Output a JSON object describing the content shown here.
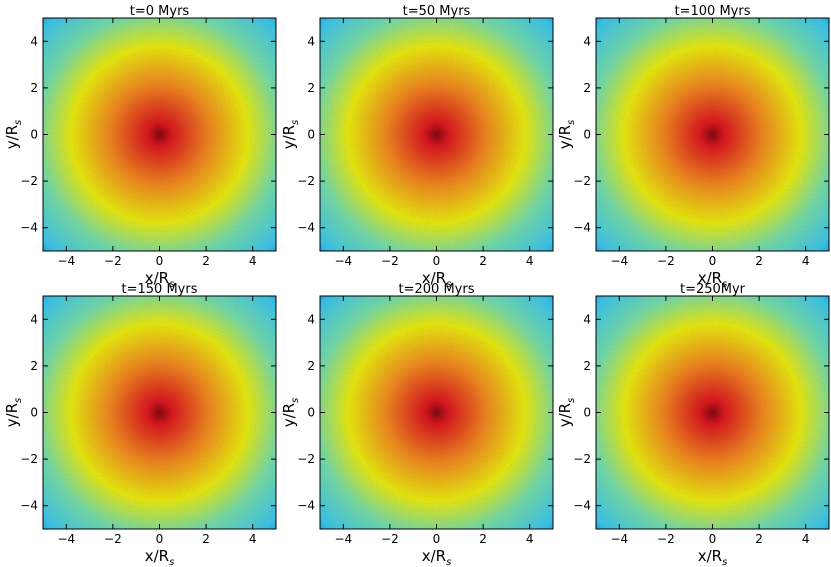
{
  "chart_data": [
    {
      "type": "heatmap",
      "title": "t=0 Myrs",
      "xlabel": "x/R",
      "xlabel_sub": "s",
      "ylabel": "y/R",
      "ylabel_sub": "s",
      "xlim": [
        -5,
        5
      ],
      "ylim": [
        -5,
        5
      ],
      "xticks": [
        -4,
        -2,
        0,
        2,
        4
      ],
      "yticks": [
        -4,
        -2,
        0,
        2,
        4
      ],
      "colormap": "jet",
      "grid": false
    },
    {
      "type": "heatmap",
      "title": "t=50 Myrs",
      "xlabel": "x/R",
      "xlabel_sub": "s",
      "ylabel": "y/R",
      "ylabel_sub": "s",
      "xlim": [
        -5,
        5
      ],
      "ylim": [
        -5,
        5
      ],
      "xticks": [
        -4,
        -2,
        0,
        2,
        4
      ],
      "yticks": [
        -4,
        -2,
        0,
        2,
        4
      ],
      "colormap": "jet",
      "grid": false
    },
    {
      "type": "heatmap",
      "title": "t=100 Myrs",
      "xlabel": "x/R",
      "xlabel_sub": "s",
      "ylabel": "y/R",
      "ylabel_sub": "s",
      "xlim": [
        -5,
        5
      ],
      "ylim": [
        -5,
        5
      ],
      "xticks": [
        -4,
        -2,
        0,
        2,
        4
      ],
      "yticks": [
        -4,
        -2,
        0,
        2,
        4
      ],
      "colormap": "jet",
      "grid": false
    },
    {
      "type": "heatmap",
      "title": "t=150 Myrs",
      "xlabel": "x/R",
      "xlabel_sub": "s",
      "ylabel": "y/R",
      "ylabel_sub": "s",
      "xlim": [
        -5,
        5
      ],
      "ylim": [
        -5,
        5
      ],
      "xticks": [
        -4,
        -2,
        0,
        2,
        4
      ],
      "yticks": [
        -4,
        -2,
        0,
        2,
        4
      ],
      "colormap": "jet",
      "grid": false
    },
    {
      "type": "heatmap",
      "title": "t=200 Myrs",
      "xlabel": "x/R",
      "xlabel_sub": "s",
      "ylabel": "y/R",
      "ylabel_sub": "s",
      "xlim": [
        -5,
        5
      ],
      "ylim": [
        -5,
        5
      ],
      "xticks": [
        -4,
        -2,
        0,
        2,
        4
      ],
      "yticks": [
        -4,
        -2,
        0,
        2,
        4
      ],
      "colormap": "jet",
      "grid": false
    },
    {
      "type": "heatmap",
      "title": "t=250Myr",
      "xlabel": "x/R",
      "xlabel_sub": "s",
      "ylabel": "y/R",
      "ylabel_sub": "s",
      "xlim": [
        -5,
        5
      ],
      "ylim": [
        -5,
        5
      ],
      "xticks": [
        -4,
        -2,
        0,
        2,
        4
      ],
      "yticks": [
        -4,
        -2,
        0,
        2,
        4
      ],
      "colormap": "jet",
      "grid": false
    }
  ],
  "colors": {
    "map_outer": "#0a2d8c",
    "map_cyan": "#40c8e8",
    "map_green": "#7fe0a0",
    "map_yellow": "#f8f000",
    "map_orange": "#ff8a10",
    "map_red": "#e81010",
    "map_core": "#8c0000"
  }
}
